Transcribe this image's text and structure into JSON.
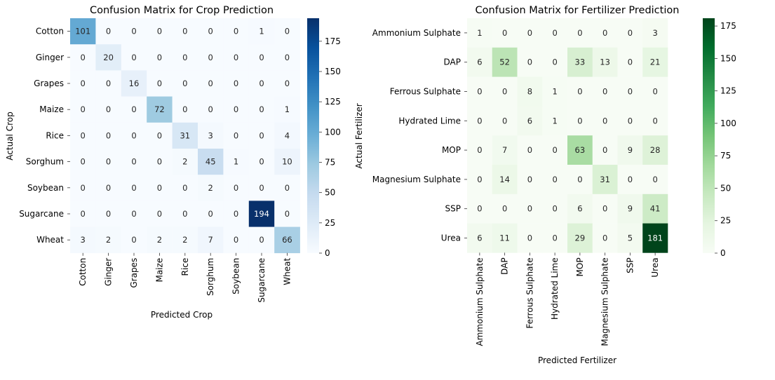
{
  "chart_data": [
    {
      "type": "heatmap",
      "title": "Confusion Matrix for Crop Prediction",
      "xlabel": "Predicted Crop",
      "ylabel": "Actual Crop",
      "colormap": "Blues",
      "x_categories": [
        "Cotton",
        "Ginger",
        "Grapes",
        "Maize",
        "Rice",
        "Sorghum",
        "Soybean",
        "Sugarcane",
        "Wheat"
      ],
      "y_categories": [
        "Cotton",
        "Ginger",
        "Grapes",
        "Maize",
        "Rice",
        "Sorghum",
        "Soybean",
        "Sugarcane",
        "Wheat"
      ],
      "values": [
        [
          101,
          0,
          0,
          0,
          0,
          0,
          0,
          1,
          0
        ],
        [
          0,
          20,
          0,
          0,
          0,
          0,
          0,
          0,
          0
        ],
        [
          0,
          0,
          16,
          0,
          0,
          0,
          0,
          0,
          0
        ],
        [
          0,
          0,
          0,
          72,
          0,
          0,
          0,
          0,
          1
        ],
        [
          0,
          0,
          0,
          0,
          31,
          3,
          0,
          0,
          4
        ],
        [
          0,
          0,
          0,
          0,
          2,
          45,
          1,
          0,
          10
        ],
        [
          0,
          0,
          0,
          0,
          0,
          2,
          0,
          0,
          0
        ],
        [
          0,
          0,
          0,
          0,
          0,
          0,
          0,
          194,
          0
        ],
        [
          3,
          2,
          0,
          2,
          2,
          7,
          0,
          0,
          66
        ]
      ],
      "color_range": [
        0,
        194
      ],
      "colorbar_ticks": [
        0,
        25,
        50,
        75,
        100,
        125,
        150,
        175
      ]
    },
    {
      "type": "heatmap",
      "title": "Confusion Matrix for Fertilizer Prediction",
      "xlabel": "Predicted Fertilizer",
      "ylabel": "Actual Fertilizer",
      "colormap": "Greens",
      "x_categories": [
        "Ammonium Sulphate",
        "DAP",
        "Ferrous Sulphate",
        "Hydrated Lime",
        "MOP",
        "Magnesium Sulphate",
        "SSP",
        "Urea"
      ],
      "y_categories": [
        "Ammonium Sulphate",
        "DAP",
        "Ferrous Sulphate",
        "Hydrated Lime",
        "MOP",
        "Magnesium Sulphate",
        "SSP",
        "Urea"
      ],
      "values": [
        [
          1,
          0,
          0,
          0,
          0,
          0,
          0,
          3
        ],
        [
          6,
          52,
          0,
          0,
          33,
          13,
          0,
          21
        ],
        [
          0,
          0,
          8,
          1,
          0,
          0,
          0,
          0
        ],
        [
          0,
          0,
          6,
          1,
          0,
          0,
          0,
          0
        ],
        [
          0,
          7,
          0,
          0,
          63,
          0,
          9,
          28
        ],
        [
          0,
          14,
          0,
          0,
          0,
          31,
          0,
          0
        ],
        [
          0,
          0,
          0,
          0,
          6,
          0,
          9,
          41
        ],
        [
          6,
          11,
          0,
          0,
          29,
          0,
          5,
          181
        ]
      ],
      "color_range": [
        0,
        181
      ],
      "colorbar_ticks": [
        0,
        25,
        50,
        75,
        100,
        125,
        150,
        175
      ]
    }
  ]
}
